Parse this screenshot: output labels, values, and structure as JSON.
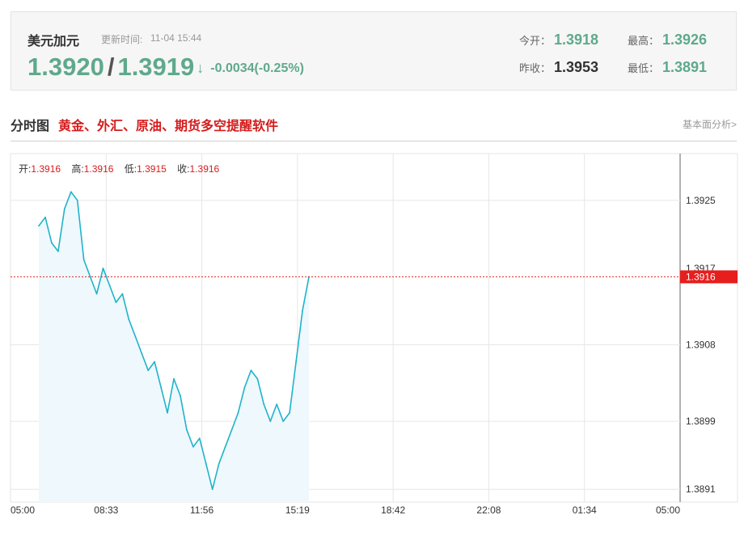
{
  "quote": {
    "name": "美元加元",
    "update_label": "更新时间:",
    "update_time": "11-04 15:44",
    "bid": "1.3920",
    "separator": "/",
    "ask": "1.3919",
    "arrow": "↓",
    "change": "-0.0034(-0.25%)",
    "stats": {
      "open_label": "今开：",
      "open_value": "1.3918",
      "high_label": "最高：",
      "high_value": "1.3926",
      "prev_close_label": "昨收：",
      "prev_close_value": "1.3953",
      "low_label": "最低：",
      "low_value": "1.3891"
    }
  },
  "section": {
    "title": "分时图",
    "promo": "黄金、外汇、原油、期货多空提醒软件",
    "fund_link": "基本面分析>"
  },
  "ohlc": {
    "open_label": "开:",
    "open": "1.3916",
    "high_label": "高:",
    "high": "1.3916",
    "low_label": "低:",
    "low": "1.3915",
    "close_label": "收:",
    "close": "1.3916"
  },
  "colors": {
    "price_green": "#5fa98c",
    "alert_red": "#d51c1c",
    "line": "#1fb3c9",
    "area": "#eef8fd",
    "grid": "#e6e6e6",
    "current_marker": "#e61e1e"
  },
  "chart_data": {
    "type": "area",
    "x_ticks": [
      "05:00",
      "08:33",
      "11:56",
      "15:19",
      "18:42",
      "22:08",
      "01:34",
      "05:00"
    ],
    "y_ticks": [
      "1.3925",
      "1.3908",
      "1.3899",
      "1.3891"
    ],
    "y_partial_tick": "1.3917",
    "ylim": [
      1.38895,
      1.39305
    ],
    "current_value": 1.3916,
    "current_label": "1.3916",
    "grid": true,
    "series": [
      {
        "values": [
          1.3922,
          1.3923,
          1.392,
          1.3919,
          1.3924,
          1.3926,
          1.3925,
          1.3918,
          1.3916,
          1.3914,
          1.3917,
          1.3915,
          1.3913,
          1.3914,
          1.3911,
          1.3909,
          1.3907,
          1.3905,
          1.3906,
          1.3903,
          1.39,
          1.3904,
          1.3902,
          1.3898,
          1.3896,
          1.3897,
          1.3894,
          1.3891,
          1.3894,
          1.3896,
          1.3898,
          1.39,
          1.3903,
          1.3905,
          1.3904,
          1.3901,
          1.3899,
          1.3901,
          1.3899,
          1.39,
          1.3906,
          1.3912,
          1.3916
        ]
      }
    ]
  }
}
